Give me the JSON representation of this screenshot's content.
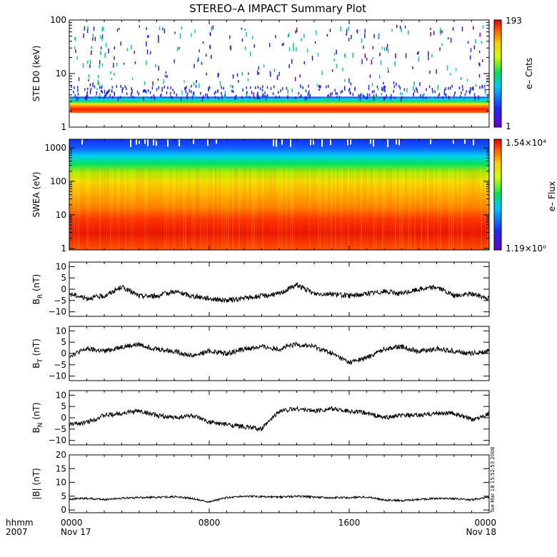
{
  "title": "STEREO–A IMPACT Summary Plot",
  "colors": {
    "frame": "#000000",
    "trace": "#000000",
    "background": "#ffffff"
  },
  "time_axis": {
    "row1_label": "hhmm",
    "row2_label": "2007",
    "ticks": [
      {
        "time": "0000",
        "date": "Nov 17"
      },
      {
        "time": "0800",
        "date": ""
      },
      {
        "time": "1600",
        "date": ""
      },
      {
        "time": "0000",
        "date": "Nov 18"
      }
    ]
  },
  "timestamp": "Tue Mar 18 15:52:53 2008",
  "chart_data": [
    {
      "type": "heatmap",
      "ylabel": "STE D0 (keV)",
      "yscale": "log",
      "ylim": [
        1,
        100
      ],
      "yticks": [
        "1",
        "10",
        "100"
      ],
      "colorbar": {
        "label": "e– Cnts",
        "max_label": "193",
        "min_label": "1"
      },
      "description_values": {
        "intense_band_keV": [
          1.9,
          2.8
        ],
        "sparse_counts_up_to_keV": 100
      }
    },
    {
      "type": "heatmap",
      "ylabel": "SWEA (eV)",
      "yscale": "log",
      "ylim": [
        0.9,
        1800
      ],
      "yticks": [
        "1",
        "10",
        "100",
        "1000"
      ],
      "colorbar": {
        "label": "e– Flux",
        "max_label": "1.54×10⁴",
        "min_label": "1.19×10⁰"
      }
    },
    {
      "type": "line",
      "ylabel": "B_R (nT)",
      "ylim": [
        -12,
        12
      ],
      "yticks": [
        "10",
        "5",
        "0",
        "−5",
        "−10"
      ],
      "x": [
        0,
        1,
        2,
        3,
        4,
        5,
        6,
        7,
        8,
        9,
        10,
        11,
        12,
        13,
        14,
        15,
        16,
        17,
        18,
        19,
        20,
        21,
        22,
        23,
        24
      ],
      "y": [
        -2,
        -4,
        -3,
        1,
        -3,
        -3,
        -1,
        -3,
        -4,
        -5,
        -4,
        -3,
        -2,
        2,
        -2,
        -2,
        -3,
        -2,
        -1,
        -2,
        0,
        1,
        -3,
        -2,
        -4
      ]
    },
    {
      "type": "line",
      "ylabel": "B_T (nT)",
      "ylim": [
        -12,
        12
      ],
      "yticks": [
        "10",
        "5",
        "0",
        "−5",
        "−10"
      ],
      "x": [
        0,
        1,
        2,
        3,
        4,
        5,
        6,
        7,
        8,
        9,
        10,
        11,
        12,
        13,
        14,
        15,
        16,
        17,
        18,
        19,
        20,
        21,
        22,
        23,
        24
      ],
      "y": [
        -1,
        2,
        1,
        3,
        4,
        2,
        1,
        -1,
        1,
        0,
        2,
        3,
        2,
        4,
        3,
        0,
        -4,
        -2,
        2,
        3,
        1,
        2,
        1,
        0,
        1
      ]
    },
    {
      "type": "line",
      "ylabel": "B_N (nT)",
      "ylim": [
        -12,
        12
      ],
      "yticks": [
        "10",
        "5",
        "0",
        "−5",
        "−10"
      ],
      "x": [
        0,
        1,
        2,
        3,
        4,
        5,
        6,
        7,
        8,
        9,
        10,
        11,
        12,
        13,
        14,
        15,
        16,
        17,
        18,
        19,
        20,
        21,
        22,
        23,
        24
      ],
      "y": [
        -3,
        -2,
        1,
        2,
        3,
        1,
        0,
        1,
        -2,
        -3,
        -4,
        -5,
        3,
        4,
        3,
        4,
        3,
        2,
        0,
        1,
        1,
        2,
        2,
        -1,
        2
      ]
    },
    {
      "type": "line",
      "ylabel": "|B| (nT)",
      "ylim": [
        -1,
        20
      ],
      "yticks": [
        "20",
        "15",
        "10",
        "5",
        "0"
      ],
      "x": [
        0,
        1,
        2,
        3,
        4,
        5,
        6,
        7,
        8,
        9,
        10,
        11,
        12,
        13,
        14,
        15,
        16,
        17,
        18,
        19,
        20,
        21,
        22,
        23,
        24
      ],
      "y": [
        4,
        4.2,
        3.8,
        4.3,
        4.5,
        4.6,
        4.8,
        4.2,
        3,
        4.5,
        5,
        4.8,
        4.6,
        5,
        4.7,
        4.5,
        4.4,
        4.8,
        3.6,
        3.4,
        3.8,
        4.2,
        4.1,
        3.7,
        4.6
      ]
    }
  ]
}
